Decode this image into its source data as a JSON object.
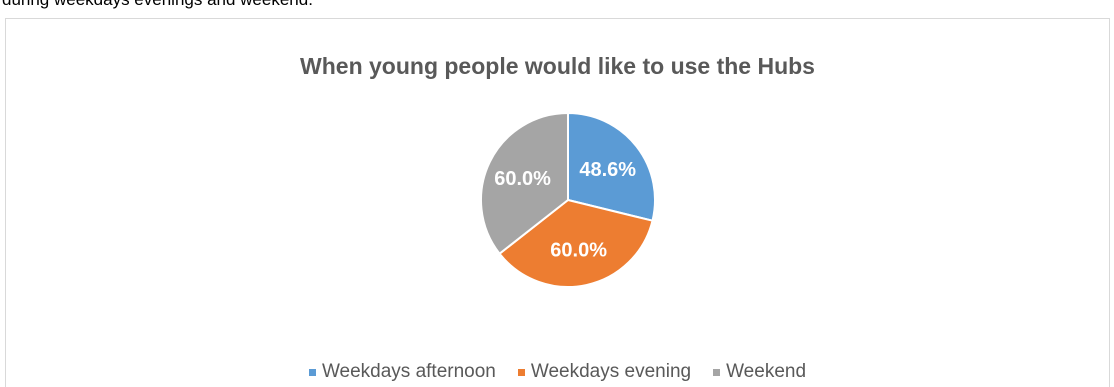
{
  "context_text": "during weekdays evenings and weekend.",
  "chart_data": {
    "type": "pie",
    "title": "When young people would like to use the Hubs",
    "categories": [
      "Weekdays afternoon",
      "Weekdays evening",
      "Weekend"
    ],
    "values": [
      48.6,
      60.0,
      60.0
    ],
    "data_labels": [
      "48.6%",
      "60.0%",
      "60.0%"
    ],
    "colors": [
      "#5b9bd5",
      "#ed7d31",
      "#a5a5a5"
    ],
    "legend_position": "bottom",
    "start_angle": "top, clockwise"
  }
}
